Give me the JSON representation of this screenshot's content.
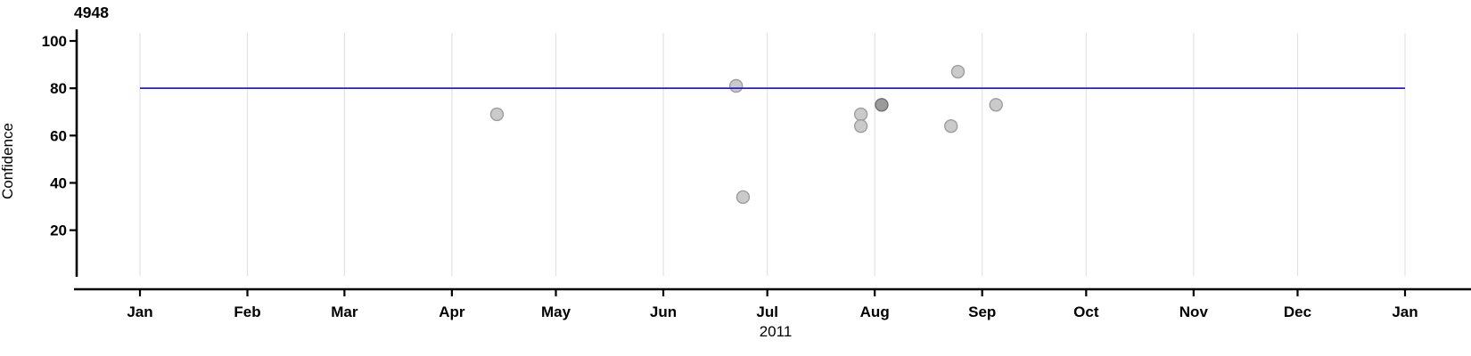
{
  "title": "4948",
  "axes": {
    "y_label": "Confidence",
    "x_label": "2011"
  },
  "chart_data": {
    "type": "scatter",
    "title": "4948",
    "xlabel": "2011",
    "ylabel": "Confidence",
    "x_axis": {
      "unit": "months of 2011 into Jan 2012",
      "tick_labels": [
        "Jan",
        "Feb",
        "Mar",
        "Apr",
        "May",
        "Jun",
        "Jul",
        "Aug",
        "Sep",
        "Oct",
        "Nov",
        "Dec",
        "Jan"
      ],
      "tick_day_offsets": [
        0,
        31,
        59,
        90,
        120,
        151,
        181,
        212,
        243,
        273,
        304,
        334,
        365
      ],
      "domain_days": [
        0,
        365
      ],
      "grid": "vertical line at every month tick"
    },
    "y_axis": {
      "ticks": [
        20,
        40,
        60,
        80,
        100
      ],
      "ylim": [
        0,
        105
      ]
    },
    "reference_line": {
      "y": 80,
      "orientation": "horizontal",
      "span_days": [
        0,
        365
      ]
    },
    "points": [
      {
        "date": "Apr 14",
        "day": 103,
        "confidence": 69,
        "overlap": 1
      },
      {
        "date": "Jun 22",
        "day": 172,
        "confidence": 81,
        "overlap": 1
      },
      {
        "date": "Jun 24",
        "day": 174,
        "confidence": 34,
        "overlap": 1
      },
      {
        "date": "Jul 28",
        "day": 208,
        "confidence": 69,
        "overlap": 1
      },
      {
        "date": "Jul 28",
        "day": 208,
        "confidence": 64,
        "overlap": 1
      },
      {
        "date": "Aug 3",
        "day": 214,
        "confidence": 73,
        "overlap": 2
      },
      {
        "date": "Aug 23",
        "day": 234,
        "confidence": 64,
        "overlap": 1
      },
      {
        "date": "Aug 25",
        "day": 236,
        "confidence": 87,
        "overlap": 1
      },
      {
        "date": "Sep 5",
        "day": 247,
        "confidence": 73,
        "overlap": 1
      }
    ],
    "colors": {
      "reference_line": "#2222cc",
      "grid": "#e2e2e2",
      "axis": "#000000",
      "point_fill": "#cacaca",
      "point_stroke": "#9e9e9e",
      "point_fill_dark": "#9b9b9b",
      "point_stroke_dark": "#6f6f6f"
    },
    "legend": "none"
  }
}
